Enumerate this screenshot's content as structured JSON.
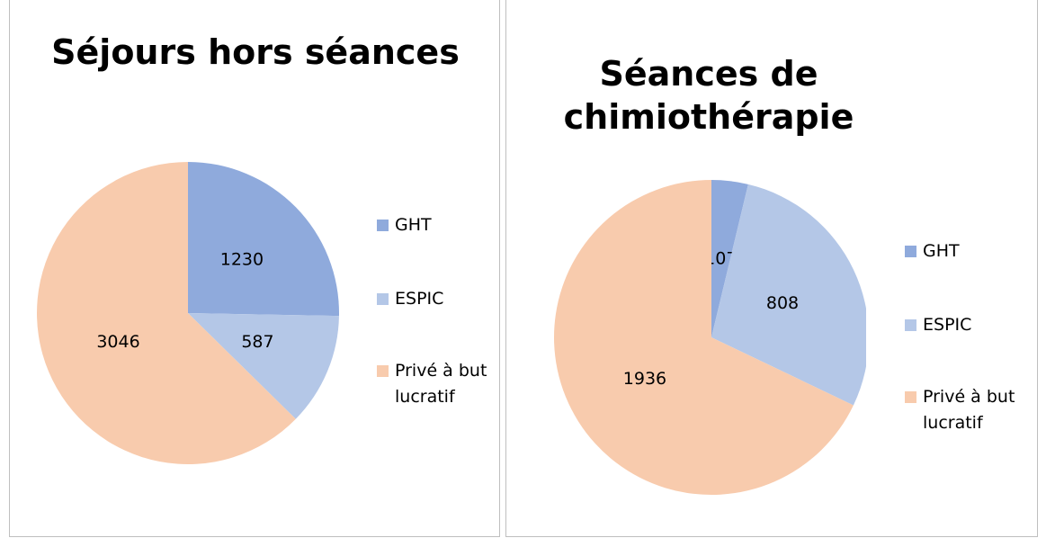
{
  "chart_data": [
    {
      "type": "pie",
      "title": "Séjours hors séances",
      "categories": [
        "GHT",
        "ESPIC",
        "Privé à but lucratif"
      ],
      "values": [
        1230,
        587,
        3046
      ],
      "colors": [
        "#8faadc",
        "#b4c7e7",
        "#f8cbad"
      ]
    },
    {
      "type": "pie",
      "title": "Séances de chimiothérapie",
      "categories": [
        "GHT",
        "ESPIC",
        "Privé à but lucratif"
      ],
      "values": [
        107,
        808,
        1936
      ],
      "colors": [
        "#8faadc",
        "#b4c7e7",
        "#f8cbad"
      ]
    }
  ]
}
